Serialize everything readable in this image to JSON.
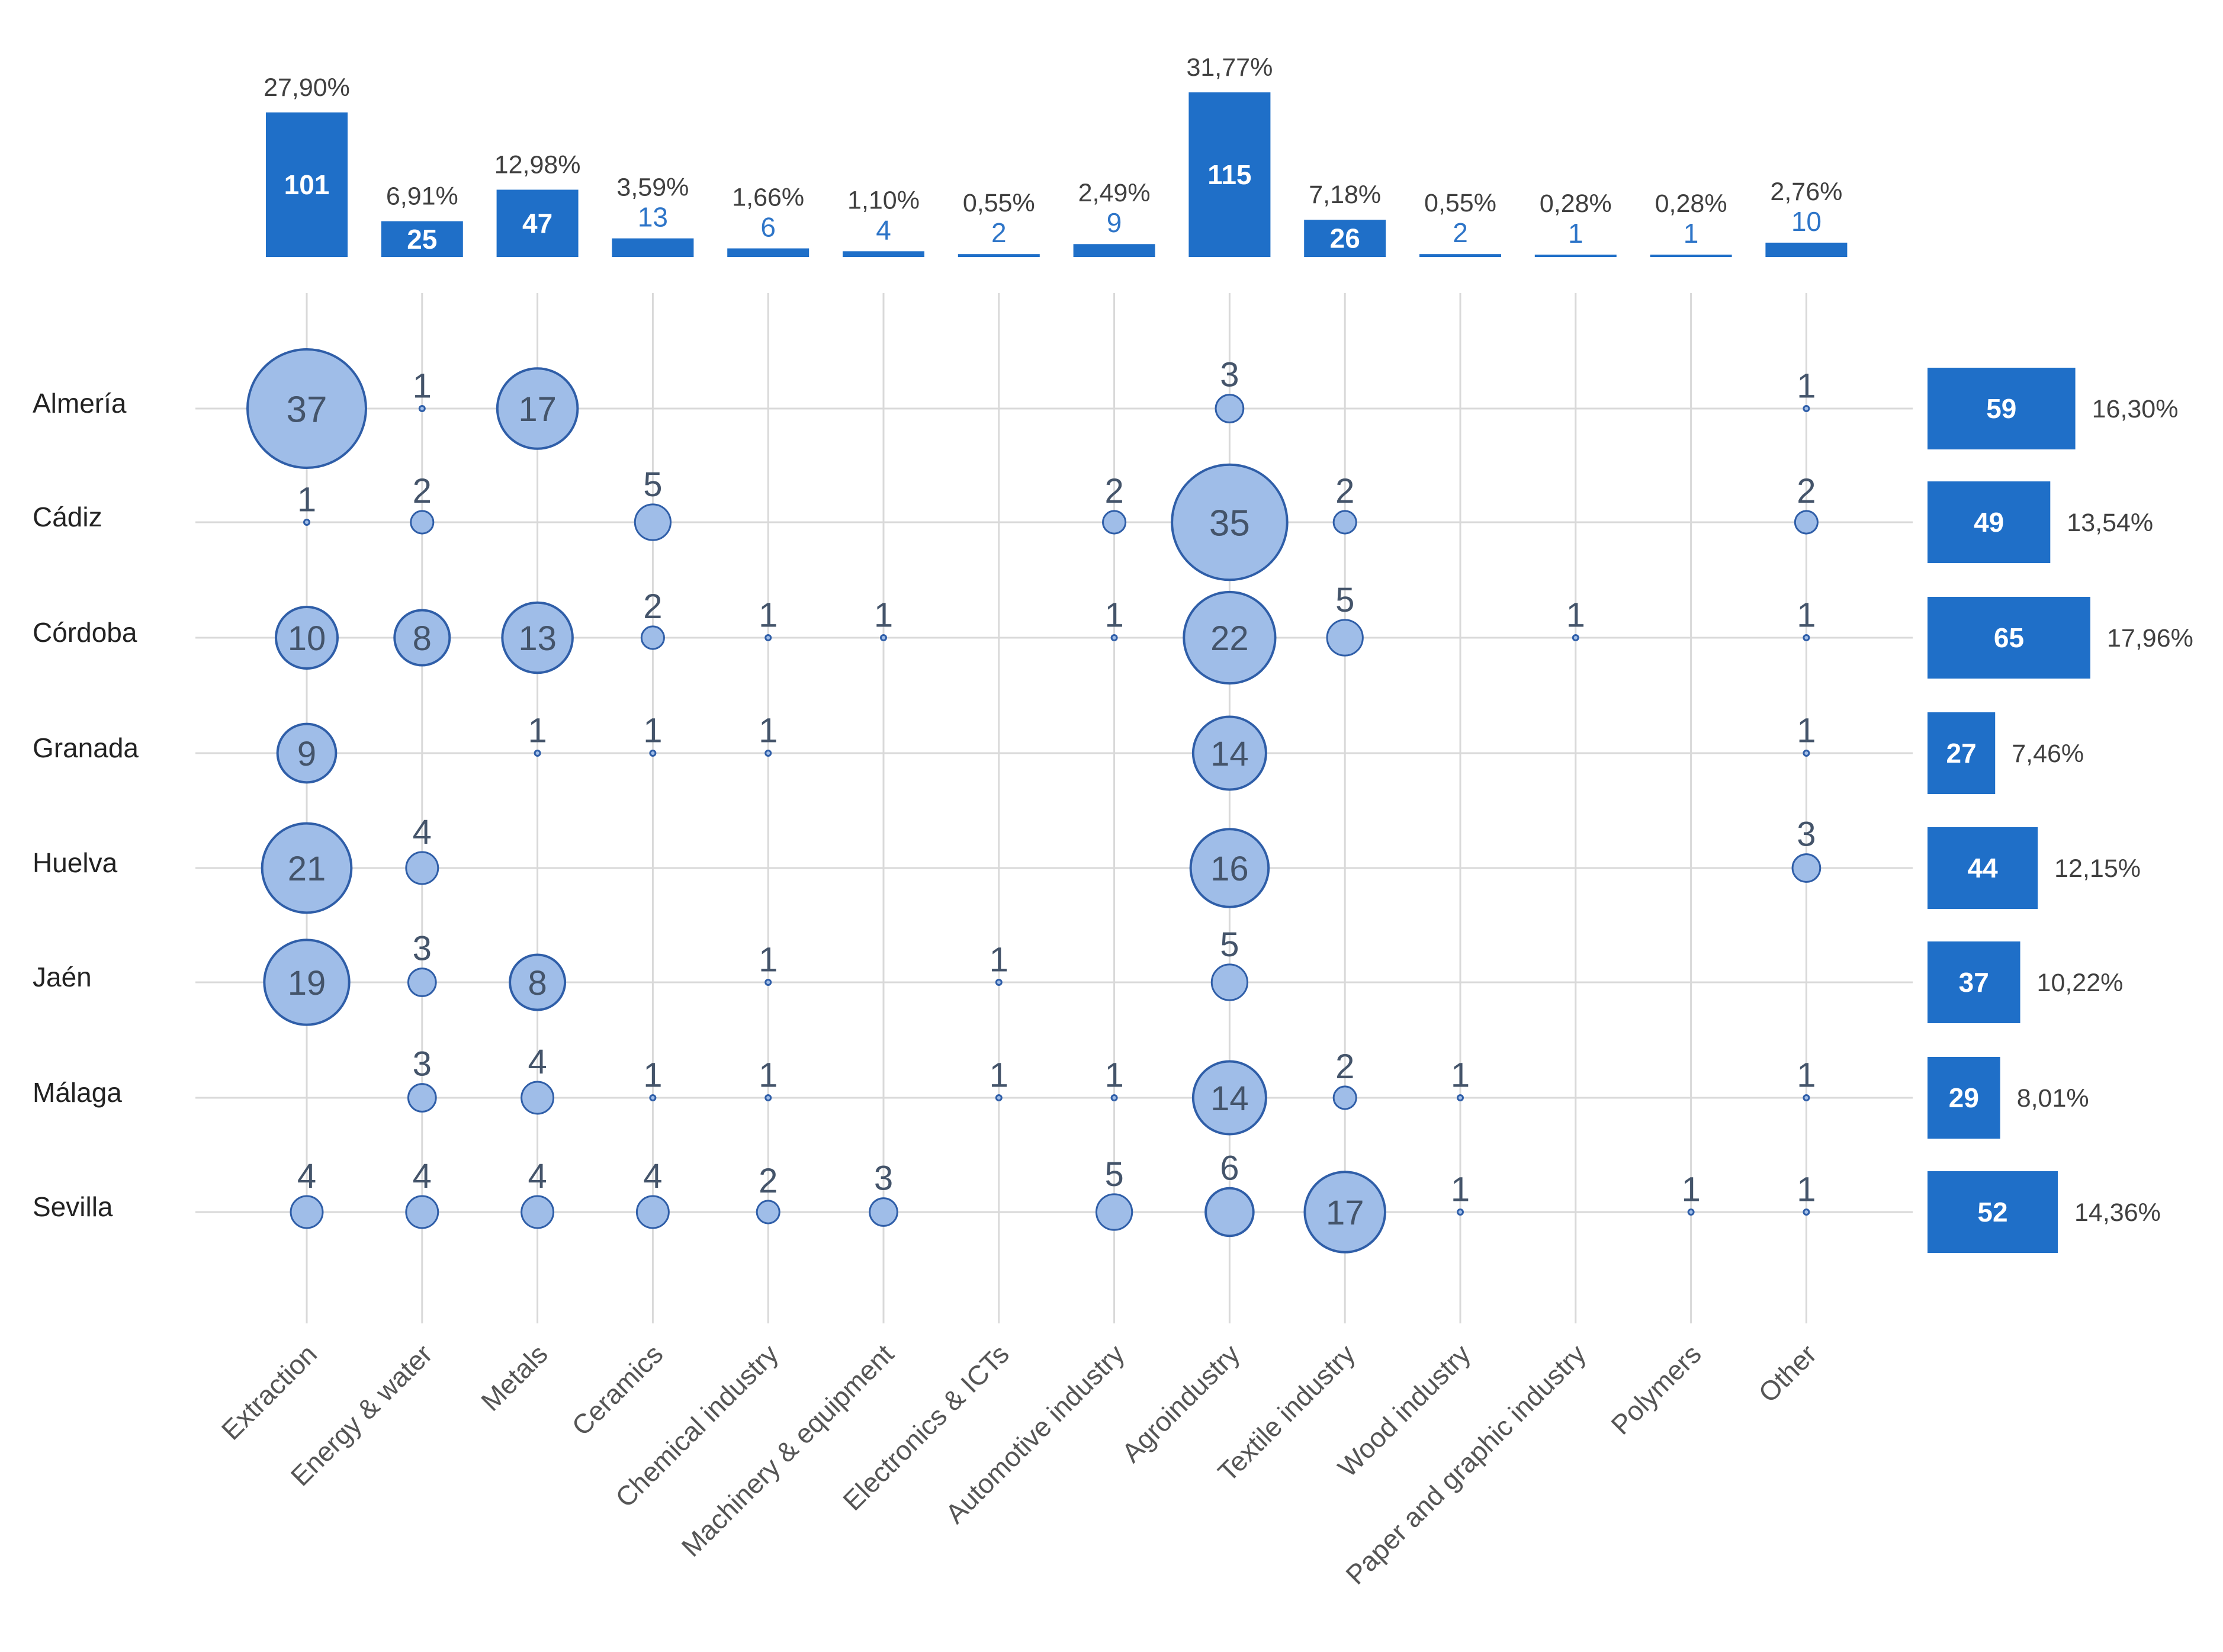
{
  "chart_data": {
    "type": "bubble-matrix",
    "colors": {
      "bar": "#1f6fc8",
      "bubble_fill": "#9fbde8",
      "bubble_stroke": "#2f5ea8",
      "grid": "#d9d9d9"
    },
    "sectors": [
      "Extraction",
      "Energy & water",
      "Metals",
      "Ceramics",
      "Chemical industry",
      "Machinery & equipment",
      "Electronics & ICTs",
      "Automotive industry",
      "Agroindustry",
      "Textile industry",
      "Wood industry",
      "Paper and graphic industry",
      "Polymers",
      "Other"
    ],
    "provinces": [
      "Almería",
      "Cádiz",
      "Córdoba",
      "Granada",
      "Huelva",
      "Jaén",
      "Málaga",
      "Sevilla"
    ],
    "sector_totals": [
      101,
      25,
      47,
      13,
      6,
      4,
      2,
      9,
      115,
      26,
      2,
      1,
      1,
      10
    ],
    "sector_percents": [
      "27,90%",
      "6,91%",
      "12,98%",
      "3,59%",
      "1,66%",
      "1,10%",
      "0,55%",
      "2,49%",
      "31,77%",
      "7,18%",
      "0,55%",
      "0,28%",
      "0,28%",
      "2,76%"
    ],
    "province_totals": [
      59,
      49,
      65,
      27,
      44,
      37,
      29,
      52
    ],
    "province_percents": [
      "16,30%",
      "13,54%",
      "17,96%",
      "7,46%",
      "12,15%",
      "10,22%",
      "8,01%",
      "14,36%"
    ],
    "matrix": [
      [
        37,
        1,
        17,
        null,
        null,
        null,
        null,
        null,
        3,
        null,
        null,
        null,
        null,
        1
      ],
      [
        1,
        2,
        null,
        5,
        null,
        null,
        null,
        2,
        35,
        2,
        null,
        null,
        null,
        2
      ],
      [
        10,
        8,
        13,
        2,
        1,
        1,
        null,
        1,
        22,
        5,
        null,
        1,
        null,
        1
      ],
      [
        9,
        null,
        1,
        1,
        1,
        null,
        null,
        null,
        14,
        null,
        null,
        null,
        null,
        1
      ],
      [
        21,
        4,
        null,
        null,
        null,
        null,
        null,
        null,
        16,
        null,
        null,
        null,
        null,
        3
      ],
      [
        19,
        3,
        8,
        null,
        1,
        null,
        1,
        null,
        5,
        null,
        null,
        null,
        null,
        null
      ],
      [
        null,
        3,
        4,
        1,
        1,
        null,
        1,
        1,
        14,
        2,
        1,
        null,
        null,
        1
      ],
      [
        4,
        4,
        4,
        4,
        2,
        3,
        null,
        5,
        6,
        17,
        1,
        null,
        1,
        1
      ]
    ]
  }
}
